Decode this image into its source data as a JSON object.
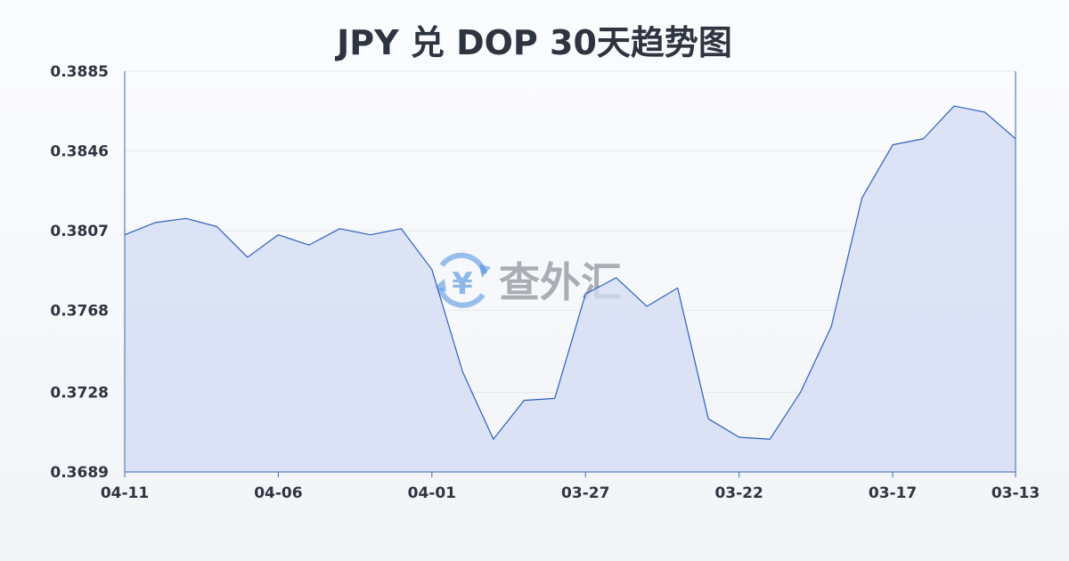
{
  "watermark": {
    "text": "查外汇",
    "symbol": "¥"
  },
  "colors": {
    "line": "#2f5fbf",
    "fill": "#d3ddf4",
    "axis": "#3a66b8",
    "grid": "#e6e8ec",
    "text": "#2e3440",
    "watermark_icon": "#4a8ee0"
  },
  "chart_data": {
    "type": "area",
    "title": "JPY 兑 DOP 30天趋势图",
    "xlabel": "",
    "ylabel": "",
    "grid": true,
    "ylim": [
      0.3689,
      0.3885
    ],
    "y_ticks": [
      "0.3885",
      "0.3846",
      "0.3807",
      "0.3768",
      "0.3728",
      "0.3689"
    ],
    "x_ticks": [
      "04-11",
      "04-06",
      "04-01",
      "03-27",
      "03-22",
      "03-17",
      "03-13"
    ],
    "x_tick_index": [
      0,
      5,
      10,
      15,
      20,
      25,
      29
    ],
    "values": [
      0.3805,
      0.3811,
      0.3813,
      0.3809,
      0.3794,
      0.3805,
      0.38,
      0.3808,
      0.3805,
      0.3808,
      0.3788,
      0.3738,
      0.3705,
      0.3724,
      0.3725,
      0.3776,
      0.3784,
      0.377,
      0.3779,
      0.3715,
      0.3706,
      0.3705,
      0.3728,
      0.376,
      0.3823,
      0.3849,
      0.3852,
      0.3868,
      0.3865,
      0.3852
    ]
  }
}
